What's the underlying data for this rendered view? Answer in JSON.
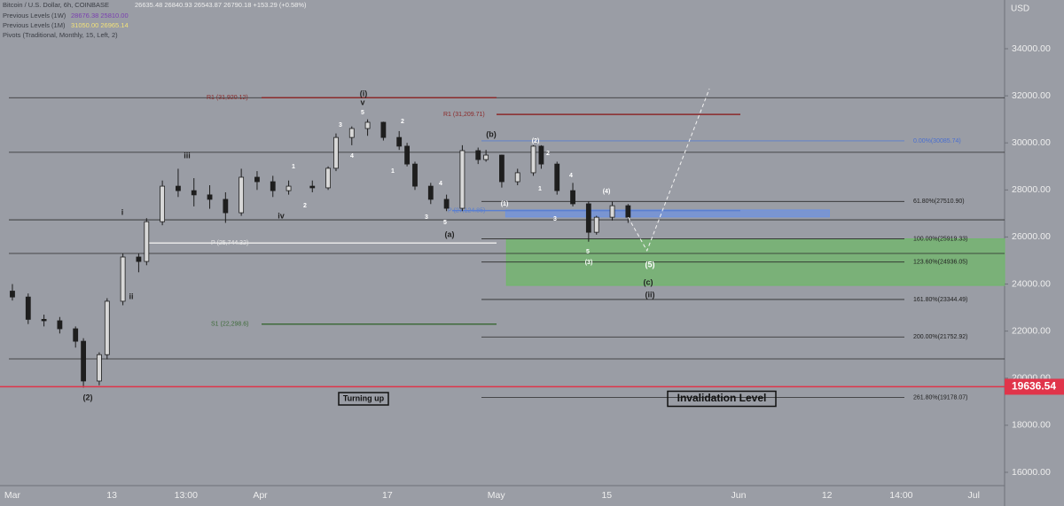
{
  "chart_data": {
    "type": "candlestick",
    "header": {
      "symbol": "Bitcoin / U.S. Dollar, 6h, COINBASE",
      "ohlc": "26635.48  26840.93  26543.87  26790.18  +153.29 (+0.58%)",
      "legend": [
        {
          "name": "Previous Levels (1W)",
          "values": "28676.38  25810.00"
        },
        {
          "name": "Previous Levels (1M)",
          "values": "31050.00  26965.14"
        },
        {
          "name": "Pivots (Traditional, Monthly, 15, Left, 2)"
        }
      ]
    },
    "currency": "USD",
    "ylim": [
      15435,
      36071
    ],
    "yticks": [
      {
        "value": 16000,
        "label": "16000.00"
      },
      {
        "value": 18000,
        "label": "18000.00"
      },
      {
        "value": 20000,
        "label": "20000.00"
      },
      {
        "value": 22000,
        "label": "22000.00"
      },
      {
        "value": 24000,
        "label": "24000.00"
      },
      {
        "value": 26000,
        "label": "26000.00"
      },
      {
        "value": 28000,
        "label": "28000.00"
      },
      {
        "value": 30000,
        "label": "30000.00"
      },
      {
        "value": 32000,
        "label": "32000.00"
      },
      {
        "value": 34000,
        "label": "34000.00"
      }
    ],
    "xlim": [
      -1.57,
      125.7
    ],
    "xticks": [
      {
        "value": 0,
        "label": "Mar"
      },
      {
        "value": 12.6,
        "label": "13"
      },
      {
        "value": 22,
        "label": "13:00"
      },
      {
        "value": 31.4,
        "label": "Apr"
      },
      {
        "value": 47.5,
        "label": "17"
      },
      {
        "value": 61.3,
        "label": "May"
      },
      {
        "value": 75.3,
        "label": "15"
      },
      {
        "value": 92,
        "label": "Jun"
      },
      {
        "value": 103.2,
        "label": "12"
      },
      {
        "value": 112.6,
        "label": "14:00"
      },
      {
        "value": 121.8,
        "label": "Jul"
      }
    ],
    "price_tag": {
      "value": 19636.54,
      "label": "19636.54"
    },
    "candles": {
      "x": [
        0,
        2,
        4,
        6,
        8,
        9,
        11,
        12,
        14,
        16,
        17,
        19,
        21,
        23,
        25,
        27,
        29,
        31,
        33,
        35,
        38,
        40,
        41,
        43,
        45,
        47,
        49,
        50,
        51,
        53,
        55,
        57,
        59,
        60,
        62,
        64,
        66,
        67,
        69,
        71,
        73,
        74,
        76,
        78
      ],
      "open": [
        23700,
        23450,
        22500,
        22440,
        22100,
        21570,
        19880,
        21000,
        23270,
        25150,
        24960,
        26650,
        28160,
        27970,
        27790,
        27600,
        27030,
        28540,
        28350,
        27970,
        28160,
        28090,
        28920,
        30230,
        30610,
        30875,
        30230,
        29860,
        29100,
        28160,
        27600,
        27220,
        29670,
        29290,
        29480,
        28350,
        28730,
        29860,
        29100,
        27970,
        27410,
        26200,
        26840,
        27330
      ],
      "high": [
        24000,
        23600,
        22700,
        22600,
        22200,
        21700,
        21100,
        23400,
        25300,
        25300,
        26800,
        28400,
        28900,
        28500,
        28200,
        27900,
        28900,
        28800,
        28600,
        28400,
        28400,
        29000,
        30400,
        30700,
        31000,
        30900,
        30500,
        30000,
        29200,
        28300,
        27800,
        29900,
        29800,
        29700,
        29500,
        28900,
        29900,
        29900,
        29200,
        28300,
        27500,
        26900,
        27500,
        27400
      ],
      "low": [
        23300,
        22300,
        22200,
        21900,
        21300,
        19600,
        19700,
        20800,
        23100,
        24500,
        24800,
        26500,
        27700,
        27300,
        27200,
        26600,
        26900,
        28000,
        27700,
        27800,
        27900,
        28000,
        28800,
        29900,
        30300,
        30100,
        29700,
        29000,
        28000,
        27400,
        27100,
        27100,
        29100,
        29200,
        28100,
        28200,
        28600,
        28900,
        27800,
        27300,
        25800,
        26100,
        26700,
        26600
      ],
      "close": [
        23450,
        22500,
        22440,
        22100,
        21570,
        19880,
        21000,
        23270,
        25150,
        24960,
        26650,
        28160,
        27970,
        27790,
        27600,
        27030,
        28540,
        28350,
        27970,
        28160,
        28090,
        28920,
        30230,
        30610,
        30875,
        30230,
        29860,
        29100,
        28160,
        27600,
        27220,
        29670,
        29290,
        29480,
        28350,
        28730,
        29860,
        29100,
        27970,
        27410,
        26200,
        26840,
        27330,
        26840
      ]
    },
    "horizontal_lines": [
      31920,
      29600,
      26730,
      25300,
      20820
    ],
    "pivots": [
      {
        "value": 31920.12,
        "label": "R1 (31,920.12)",
        "color": "#8b2a2a"
      },
      {
        "value": 25744.32,
        "label": "P (25,744.32)",
        "color": "#e8e8e8"
      },
      {
        "value": 22298.6,
        "label": "S1 (22,298.6)",
        "color": "#3f6b3a"
      },
      {
        "value": 31209.71,
        "label": "R1 (31,209.71)",
        "color": "#8b2a2a"
      },
      {
        "value": 27124.85,
        "label": "P (27,124.85)",
        "color": "#5a7fd0"
      }
    ],
    "fib_levels": [
      {
        "value": 30085.74,
        "label": "0.00%(30085.74)"
      },
      {
        "value": 27510.9,
        "label": "61.80%(27510.90)"
      },
      {
        "value": 25919.33,
        "label": "100.00%(25919.33)"
      },
      {
        "value": 24936.05,
        "label": "123.60%(24936.05)"
      },
      {
        "value": 23344.49,
        "label": "161.80%(23344.49)"
      },
      {
        "value": 21752.92,
        "label": "200.00%(21752.92)"
      },
      {
        "value": 19178.07,
        "label": "261.80%(19178.07)"
      }
    ],
    "zones": [
      {
        "x": [
          62.6,
          125.7
        ],
        "y": [
          23945,
          25919.33
        ],
        "color": "#6fb86a"
      },
      {
        "x": [
          62.5,
          103.5
        ],
        "y": [
          26850,
          27150
        ],
        "color": "#6f93e0"
      }
    ],
    "projection": {
      "x": [
        78,
        80.4,
        88.3
      ],
      "y": [
        26840,
        25420,
        32300
      ]
    },
    "annotations": [
      "(i)",
      "v",
      "5",
      "3",
      "4",
      "2",
      "1",
      "1",
      "2",
      "iii",
      "iv",
      "i",
      "ii",
      "(2)",
      "(a)",
      "(b)",
      "4",
      "3",
      "5",
      "(2)",
      "2",
      "(1)",
      "1",
      "4",
      "3",
      "(4)",
      "5",
      "(3)",
      "(5)",
      "(c)",
      "(ii)"
    ],
    "callouts": [
      "Turning up",
      "Invalidation Level"
    ]
  }
}
